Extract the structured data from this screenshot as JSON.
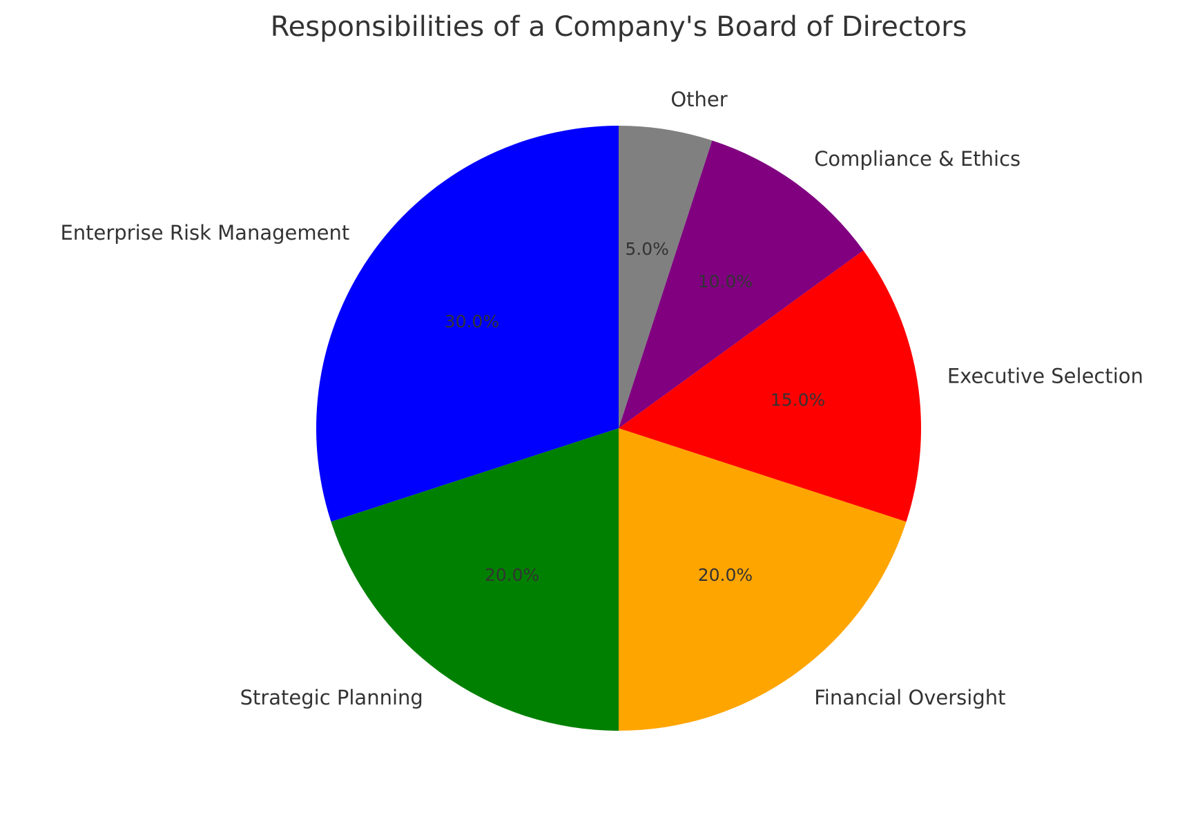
{
  "chart_data": {
    "type": "pie",
    "title": "Responsibilities of a Company's Board of Directors",
    "start_angle_deg": 90,
    "direction": "counterclockwise",
    "slices": [
      {
        "label": "Enterprise Risk Management",
        "value": 30.0,
        "pct_label": "30.0%",
        "color": "#0000ff"
      },
      {
        "label": "Strategic Planning",
        "value": 20.0,
        "pct_label": "20.0%",
        "color": "#008000"
      },
      {
        "label": "Financial Oversight",
        "value": 20.0,
        "pct_label": "20.0%",
        "color": "#ffa500"
      },
      {
        "label": "Executive Selection",
        "value": 15.0,
        "pct_label": "15.0%",
        "color": "#ff0000"
      },
      {
        "label": "Compliance & Ethics",
        "value": 10.0,
        "pct_label": "10.0%",
        "color": "#800080"
      },
      {
        "label": "Other",
        "value": 5.0,
        "pct_label": "5.0%",
        "color": "#808080"
      }
    ]
  }
}
